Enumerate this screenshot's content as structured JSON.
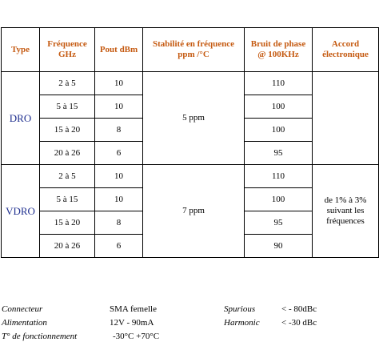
{
  "headers": {
    "type": "Type",
    "freq": [
      "Fréquence",
      "GHz"
    ],
    "pout": "Pout dBm",
    "stab": [
      "Stabilité en fréquence",
      "ppm /°C"
    ],
    "noise": [
      "Bruit de phase",
      "@ 100KHz"
    ],
    "accord": [
      "Accord",
      "électronique"
    ]
  },
  "groups": [
    {
      "type": "DRO",
      "stability": "5 ppm",
      "accord": [],
      "rows": [
        {
          "freq": "2 à 5",
          "pout": "10",
          "noise": "110"
        },
        {
          "freq": "5 à 15",
          "pout": "10",
          "noise": "100"
        },
        {
          "freq": "15 à 20",
          "pout": "8",
          "noise": "100"
        },
        {
          "freq": "20 à 26",
          "pout": "6",
          "noise": "95"
        }
      ]
    },
    {
      "type": "VDRO",
      "stability": "7 ppm",
      "accord": [
        "de 1% à 3%",
        "suivant les",
        "fréquences"
      ],
      "rows": [
        {
          "freq": "2 à 5",
          "pout": "10",
          "noise": "110"
        },
        {
          "freq": "5 à 15",
          "pout": "10",
          "noise": "100"
        },
        {
          "freq": "15 à 20",
          "pout": "8",
          "noise": "95"
        },
        {
          "freq": "20 à 26",
          "pout": "6",
          "noise": "90"
        }
      ]
    }
  ],
  "specs_left": [
    {
      "label": "Connecteur",
      "value": "SMA femelle"
    },
    {
      "label": "Alimentation",
      "value": "12V - 90mA"
    },
    {
      "label": "T° de fonctionnement",
      "value": "-30°C +70°C"
    }
  ],
  "specs_right": [
    {
      "label": "Spurious",
      "value": "< - 80dBc"
    },
    {
      "label": "Harmonic",
      "value": "< -30 dBc"
    }
  ]
}
